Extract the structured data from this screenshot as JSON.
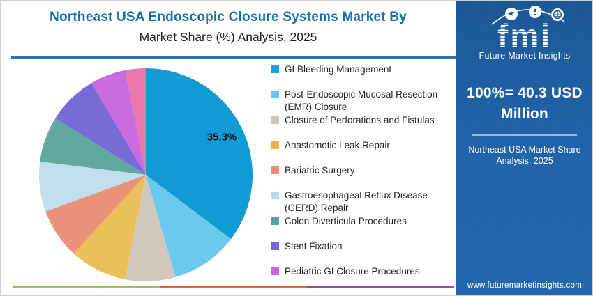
{
  "header": {
    "title_line1": "Northeast USA Endoscopic Closure Systems Market By",
    "title_line2": "Market Share (%) Analysis, 2025"
  },
  "chart_data": {
    "type": "pie",
    "title": "Northeast USA Endoscopic Closure Systems Market By Market Share (%) Analysis, 2025",
    "unit": "%",
    "start_angle": "12 o'clock",
    "direction": "clockwise",
    "data_label": "35.3%",
    "total_note": "100%= 40.3 USD Million",
    "slices": [
      {
        "label": "GI Bleeding Management",
        "value": 35.3,
        "color": "#119bd5"
      },
      {
        "label": "Post-Endoscopic Mucosal Resection (EMR) Closure",
        "value": 10.2,
        "color": "#69c9ee"
      },
      {
        "label": "Closure of Perforations and Fistulas",
        "value": 7.6,
        "color": "#d2c7bc"
      },
      {
        "label": "Anastomotic Leak Repair",
        "value": 8.7,
        "color": "#e9c05c"
      },
      {
        "label": "Bariatric Surgery",
        "value": 7.6,
        "color": "#ea9179"
      },
      {
        "label": "Gastroesophageal Reflux Disease (GERD) Repair",
        "value": 7.6,
        "color": "#c0deec"
      },
      {
        "label": "Colon Diverticula Procedures",
        "value": 6.9,
        "color": "#62a8a0"
      },
      {
        "label": "Stent Fixation",
        "value": 7.6,
        "color": "#776bd6"
      },
      {
        "label": "Pediatric GI Closure Procedures",
        "value": 5.4,
        "color": "#c86ce0"
      },
      {
        "label": "",
        "value": 3.1,
        "color": "#ea77ac",
        "note": "unlabeled slice, no legend entry"
      }
    ],
    "legend_position": "right of pie"
  },
  "legend": {
    "items": [
      {
        "label": "GI Bleeding Management",
        "color": "#189fd5"
      },
      {
        "label": "Post-Endoscopic Mucosal Resection\n(EMR) Closure",
        "color": "#63c9ee"
      },
      {
        "label": "Closure of Perforations and Fistulas",
        "color": "#c9c4c0"
      },
      {
        "label": "Anastomotic Leak Repair",
        "color": "#e3b84e"
      },
      {
        "label": "Bariatric Surgery",
        "color": "#e98f77"
      },
      {
        "label": "Gastroesophageal Reflux Disease\n(GERD) Repair",
        "color": "#b8dcea"
      },
      {
        "label": "Colon Diverticula Procedures",
        "color": "#57a49c"
      },
      {
        "label": "Stent Fixation",
        "color": "#7465d2"
      },
      {
        "label": "Pediatric GI Closure Procedures",
        "color": "#c868dd"
      }
    ]
  },
  "sidebar": {
    "logo_text": "fmi",
    "logo_subtitle": "Future Market Insights",
    "headline": "100%= 40.3 USD Million",
    "subheadline": "Northeast USA Market Share Analysis, 2025",
    "website": "www.futuremarketinsights.com",
    "bg_color": "#2063a9"
  },
  "footer": {
    "bar_colors": [
      "#94c455",
      "#e8632a",
      "#8e4a9b"
    ]
  }
}
